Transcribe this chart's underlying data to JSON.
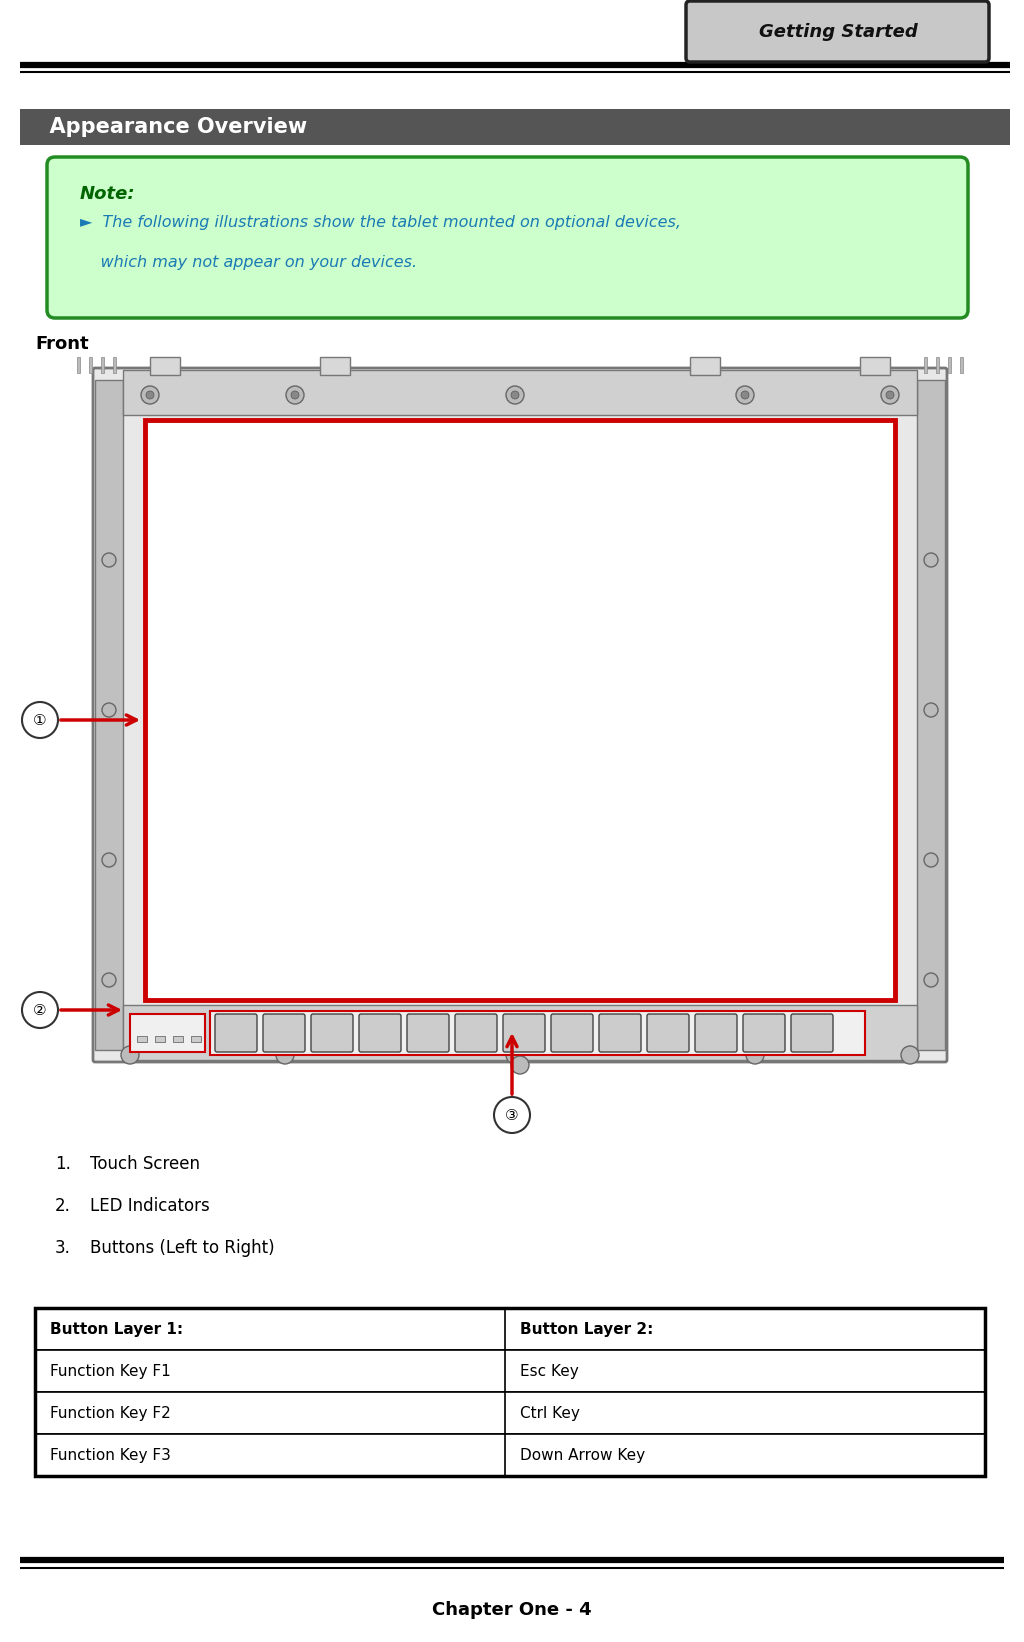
{
  "page_width": 10.24,
  "page_height": 16.42,
  "bg_color": "#ffffff",
  "header_tab_text": "Getting Started",
  "header_tab_bg": "#c8c8c8",
  "header_tab_border": "#222222",
  "section_header_text": "  Appearance Overview",
  "section_header_bg": "#555555",
  "section_header_text_color": "#ffffff",
  "note_bg": "#ccffcc",
  "note_border": "#228B22",
  "note_title": "Note:",
  "note_title_color": "#006400",
  "note_line1": "►  The following illustrations show the tablet mounted on optional devices,",
  "note_line2": "    which may not appear on your devices.",
  "note_text_color": "#1a7ab5",
  "front_label": "Front",
  "items": [
    {
      "num": "1.",
      "text": "Touch Screen"
    },
    {
      "num": "2.",
      "text": "LED Indicators"
    },
    {
      "num": "3.",
      "text": "Buttons (Left to Right)"
    }
  ],
  "table_headers": [
    "Button Layer 1:",
    "Button Layer 2:"
  ],
  "table_rows": [
    [
      "Function Key F1",
      "Esc Key"
    ],
    [
      "Function Key F2",
      "Ctrl Key"
    ],
    [
      "Function Key F3",
      "Down Arrow Key"
    ]
  ],
  "footer_text": "Chapter One - 4",
  "circle_labels": [
    "1",
    "2",
    "3"
  ],
  "arrow_color": "#cc0000",
  "tablet_screen_border": "#cc0000",
  "frame_color": "#aaaaaa",
  "frame_dark": "#777777",
  "frame_light": "#dddddd"
}
